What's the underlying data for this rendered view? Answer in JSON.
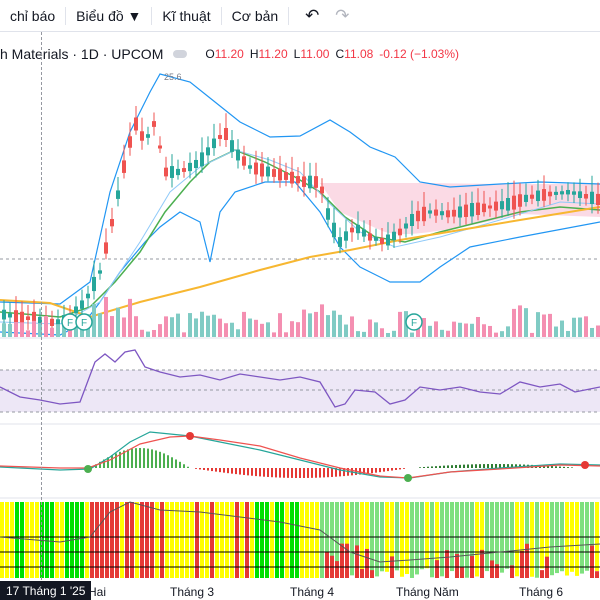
{
  "toolbar": {
    "indicators_label": "chỉ báo",
    "chart_type_label": "Biểu đồ ▼",
    "technical_label": "Kĩ thuật",
    "fundamental_label": "Cơ bản",
    "undo_icon": "undo-icon",
    "redo_icon": "redo-icon"
  },
  "legend": {
    "symbol": "h Materials · 1D · UPCOM",
    "open_label": "O",
    "open": "11.20",
    "high_label": "H",
    "high": "11.20",
    "low_label": "L",
    "low": "11.00",
    "close_label": "C",
    "close": "11.08",
    "change": "-0.12 (−1.03%)"
  },
  "annotations": {
    "peak_value": "25.6",
    "event_label": "F"
  },
  "time_axis": {
    "crosshair_date": "17 Tháng 1 '25",
    "labels": [
      "Hai",
      "Tháng 3",
      "Tháng 4",
      "Tháng Năm",
      "Tháng 6"
    ]
  },
  "colors": {
    "up": "#26a69a",
    "down": "#ef5350",
    "bollinger": "#2196f3",
    "ma_green": "#4caf50",
    "ma_orange": "#f7b731",
    "rsi": "#7e57c2",
    "macd_line": "#ef5350",
    "signal_line": "#26a69a"
  }
}
